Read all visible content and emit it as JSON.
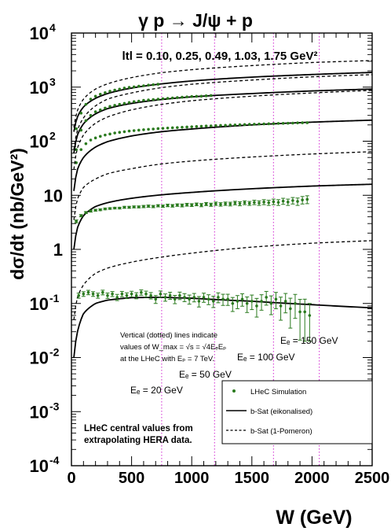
{
  "chart_data": {
    "type": "line",
    "title": "γ p → J/ψ + p",
    "xlabel": "W  (GeV)",
    "ylabel": "dσ/dt  (nb/GeV²)",
    "yscale": "log",
    "xlim": [
      0,
      2500
    ],
    "ylim": [
      0.0001,
      10000
    ],
    "grid": false,
    "x_ticks": [
      "0",
      "500",
      "1000",
      "1500",
      "2000",
      "2500"
    ],
    "y_ticks": [
      {
        "base": "10",
        "exp": "4",
        "value": 10000
      },
      {
        "base": "10",
        "exp": "3",
        "value": 1000
      },
      {
        "base": "10",
        "exp": "2",
        "value": 100
      },
      {
        "base": "10",
        "exp": "",
        "value": 10
      },
      {
        "base": "1",
        "exp": "",
        "value": 1
      },
      {
        "base": "10",
        "exp": "-1",
        "value": 0.1
      },
      {
        "base": "10",
        "exp": "-2",
        "value": 0.01
      },
      {
        "base": "10",
        "exp": "-3",
        "value": 0.001
      },
      {
        "base": "10",
        "exp": "-4",
        "value": 0.0001
      }
    ],
    "t_label": "ltl = 0.10, 0.25, 0.49, 1.03, 1.75 GeV²",
    "vertical_lines": [
      {
        "x": 750,
        "label": "Eₑ =  20 GeV"
      },
      {
        "x": 1190,
        "label": "Eₑ =  50 GeV"
      },
      {
        "x": 1680,
        "label": "Eₑ = 100 GeV"
      },
      {
        "x": 2060,
        "label": "Eₑ = 150 GeV"
      }
    ],
    "annotation_lines": [
      "Vertical (dotted) lines indicate",
      "values of W_max = √s = √4EₑEₚ",
      "at the LHeC with Eₚ = 7 TeV."
    ],
    "note_lines": [
      "LHeC central values from",
      "extrapolating HERA data."
    ],
    "legend": {
      "position": "bottom-right",
      "entries": [
        {
          "label": "LHeC Simulation",
          "style": "points"
        },
        {
          "label": "b-Sat (eikonalised)",
          "style": "solid"
        },
        {
          "label": "b-Sat (1-Pomeron)",
          "style": "dashed"
        }
      ]
    },
    "series": [
      {
        "t": 0.1,
        "style": "solid",
        "x": [
          20,
          50,
          100,
          200,
          300,
          500,
          750,
          1000,
          1500,
          2000,
          2500
        ],
        "y": [
          150,
          280,
          430,
          620,
          760,
          960,
          1150,
          1300,
          1530,
          1710,
          1870
        ]
      },
      {
        "t": 0.1,
        "style": "dashed",
        "x": [
          20,
          50,
          100,
          200,
          300,
          500,
          750,
          1000,
          1500,
          2000,
          2500
        ],
        "y": [
          180,
          370,
          600,
          920,
          1150,
          1500,
          1850,
          2100,
          2500,
          2850,
          3100
        ]
      },
      {
        "t": 0.25,
        "style": "solid",
        "x": [
          20,
          50,
          100,
          200,
          300,
          500,
          750,
          1000,
          1500,
          2000,
          2500
        ],
        "y": [
          60,
          130,
          210,
          320,
          400,
          500,
          590,
          660,
          760,
          850,
          920
        ]
      },
      {
        "t": 0.25,
        "style": "dashed",
        "x": [
          20,
          50,
          100,
          200,
          300,
          500,
          750,
          1000,
          1500,
          2000,
          2500
        ],
        "y": [
          70,
          160,
          270,
          450,
          600,
          780,
          980,
          1130,
          1350,
          1550,
          1700
        ]
      },
      {
        "t": 0.49,
        "style": "solid",
        "x": [
          20,
          50,
          100,
          200,
          300,
          500,
          750,
          1000,
          1500,
          2000,
          2500
        ],
        "y": [
          12,
          30,
          50,
          78,
          98,
          125,
          150,
          168,
          200,
          225,
          245
        ]
      },
      {
        "t": 0.49,
        "style": "dashed",
        "x": [
          20,
          50,
          100,
          200,
          300,
          500,
          750,
          1000,
          1500,
          2000,
          2500
        ],
        "y": [
          30,
          75,
          130,
          215,
          280,
          380,
          480,
          560,
          680,
          780,
          870
        ]
      },
      {
        "t": 1.03,
        "style": "solid",
        "x": [
          20,
          50,
          100,
          200,
          300,
          500,
          750,
          1000,
          1500,
          2000,
          2500
        ],
        "y": [
          1.0,
          2.5,
          4.2,
          6.2,
          7.3,
          8.8,
          10.2,
          11.3,
          13.2,
          14.8,
          16.0
        ]
      },
      {
        "t": 1.03,
        "style": "dashed",
        "x": [
          20,
          50,
          100,
          200,
          300,
          500,
          750,
          1000,
          1500,
          2000,
          2500
        ],
        "y": [
          3.5,
          8.5,
          14,
          20,
          25,
          31,
          38,
          43,
          51,
          58,
          64
        ]
      },
      {
        "t": 1.75,
        "style": "solid",
        "x": [
          20,
          50,
          100,
          200,
          300,
          500,
          750,
          1000,
          1500,
          2000,
          2500
        ],
        "y": [
          0.01,
          0.03,
          0.065,
          0.1,
          0.115,
          0.128,
          0.13,
          0.125,
          0.11,
          0.095,
          0.083
        ]
      },
      {
        "t": 1.75,
        "style": "dashed",
        "x": [
          20,
          50,
          100,
          200,
          300,
          500,
          750,
          1000,
          1500,
          2000,
          2500
        ],
        "y": [
          0.05,
          0.13,
          0.22,
          0.36,
          0.45,
          0.58,
          0.72,
          0.85,
          1.1,
          1.3,
          1.45
        ]
      }
    ],
    "points": [
      {
        "t": 0.1,
        "x": [
          40,
          80,
          120,
          160,
          200,
          240,
          280,
          320,
          360,
          400,
          440,
          480,
          520,
          560,
          600,
          640,
          680,
          720
        ],
        "y": [
          170,
          330,
          480,
          600,
          680,
          740,
          790,
          840,
          880,
          920,
          960,
          990,
          1010,
          1040,
          1060,
          1090,
          1110,
          1130
        ],
        "err": []
      },
      {
        "t": 0.25,
        "x": [
          40,
          80,
          120,
          160,
          200,
          240,
          280,
          320,
          360,
          400,
          440,
          480,
          520,
          560,
          600,
          640,
          680,
          720,
          760,
          800,
          840,
          880,
          920,
          960,
          1000,
          1040,
          1080,
          1120,
          1160
        ],
        "y": [
          70,
          160,
          240,
          300,
          350,
          380,
          410,
          440,
          460,
          480,
          500,
          520,
          540,
          550,
          570,
          580,
          590,
          600,
          610,
          620,
          630,
          640,
          650,
          660,
          670,
          675,
          680,
          690,
          700
        ],
        "err": []
      },
      {
        "t": 0.49,
        "x": [
          40,
          80,
          120,
          160,
          200,
          240,
          280,
          320,
          360,
          400,
          440,
          480,
          520,
          560,
          600,
          640,
          680,
          720,
          760,
          800,
          840,
          880,
          920,
          960,
          1000,
          1040,
          1080,
          1120,
          1160,
          1200,
          1240,
          1280,
          1320,
          1360,
          1400,
          1440,
          1480,
          1520,
          1560,
          1600,
          1640,
          1680,
          1720,
          1760,
          1800,
          1840,
          1880,
          1920,
          1960
        ],
        "y": [
          40,
          70,
          90,
          105,
          115,
          123,
          130,
          136,
          142,
          146,
          150,
          154,
          157,
          160,
          163,
          166,
          168,
          171,
          173,
          175,
          177,
          179,
          181,
          183,
          185,
          187,
          189,
          191,
          192,
          194,
          196,
          197,
          199,
          200,
          202,
          203,
          205,
          206,
          208,
          209,
          210,
          211,
          213,
          214,
          215,
          216,
          218,
          219,
          220
        ],
        "err": []
      },
      {
        "t": 1.03,
        "x": [
          40,
          80,
          120,
          160,
          200,
          240,
          280,
          320,
          360,
          400,
          440,
          480,
          520,
          560,
          600,
          640,
          680,
          720,
          760,
          800,
          840,
          880,
          920,
          960,
          1000,
          1040,
          1080,
          1120,
          1160,
          1200,
          1240,
          1280,
          1320,
          1360,
          1400,
          1440,
          1480,
          1520,
          1560,
          1600,
          1640,
          1680,
          1720,
          1760,
          1800,
          1840,
          1880,
          1920,
          1960
        ],
        "y": [
          3.3,
          4.2,
          4.8,
          5.1,
          5.3,
          5.4,
          5.6,
          5.7,
          5.8,
          5.8,
          6.0,
          6.0,
          6.1,
          6.1,
          6.2,
          6.3,
          6.2,
          6.4,
          6.3,
          6.5,
          6.4,
          6.6,
          6.5,
          6.7,
          6.6,
          6.8,
          6.6,
          6.9,
          6.7,
          7.0,
          6.8,
          7.0,
          6.9,
          7.2,
          7.0,
          7.3,
          7.1,
          7.4,
          7.2,
          7.5,
          7.3,
          7.6,
          7.4,
          7.8,
          7.5,
          8.0,
          7.7,
          8.2,
          8.4
        ],
        "err": [
          0.2,
          0.2,
          0.2,
          0.2,
          0.2,
          0.2,
          0.2,
          0.2,
          0.2,
          0.2,
          0.25,
          0.25,
          0.25,
          0.25,
          0.3,
          0.3,
          0.3,
          0.3,
          0.3,
          0.35,
          0.35,
          0.35,
          0.4,
          0.4,
          0.4,
          0.4,
          0.45,
          0.45,
          0.45,
          0.5,
          0.5,
          0.5,
          0.55,
          0.55,
          0.6,
          0.6,
          0.6,
          0.7,
          0.7,
          0.8,
          0.8,
          0.9,
          0.9,
          1.0,
          1.0,
          1.1,
          1.2,
          1.3,
          1.4
        ]
      },
      {
        "t": 1.75,
        "x": [
          60,
          100,
          140,
          180,
          220,
          260,
          300,
          340,
          380,
          420,
          460,
          500,
          540,
          580,
          620,
          660,
          700,
          740,
          780,
          820,
          860,
          900,
          940,
          980,
          1020,
          1060,
          1100,
          1140,
          1180,
          1220,
          1260,
          1300,
          1340,
          1380,
          1420,
          1460,
          1500,
          1540,
          1580,
          1620,
          1660,
          1700,
          1740,
          1780,
          1820,
          1860,
          1900,
          1940,
          1980
        ],
        "y": [
          0.14,
          0.15,
          0.16,
          0.15,
          0.14,
          0.16,
          0.14,
          0.15,
          0.13,
          0.15,
          0.14,
          0.15,
          0.14,
          0.16,
          0.15,
          0.14,
          0.12,
          0.15,
          0.13,
          0.14,
          0.12,
          0.14,
          0.13,
          0.12,
          0.13,
          0.11,
          0.13,
          0.12,
          0.11,
          0.13,
          0.12,
          0.12,
          0.1,
          0.11,
          0.12,
          0.1,
          0.11,
          0.09,
          0.11,
          0.13,
          0.1,
          0.12,
          0.09,
          0.11,
          0.08,
          0.1,
          0.07,
          0.07,
          0.06
        ],
        "err": [
          0.015,
          0.015,
          0.015,
          0.015,
          0.015,
          0.016,
          0.016,
          0.016,
          0.017,
          0.017,
          0.017,
          0.018,
          0.018,
          0.018,
          0.019,
          0.019,
          0.02,
          0.02,
          0.02,
          0.021,
          0.021,
          0.022,
          0.022,
          0.023,
          0.023,
          0.024,
          0.025,
          0.025,
          0.026,
          0.027,
          0.028,
          0.028,
          0.029,
          0.03,
          0.031,
          0.032,
          0.033,
          0.034,
          0.035,
          0.037,
          0.038,
          0.04,
          0.041,
          0.043,
          0.045,
          0.047,
          0.049,
          0.05,
          0.04
        ]
      }
    ]
  }
}
